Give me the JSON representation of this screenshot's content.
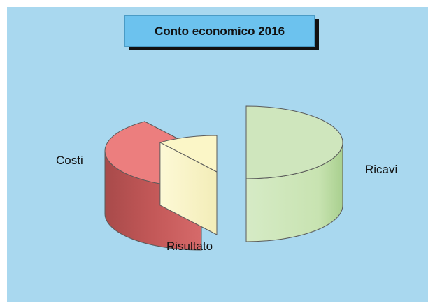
{
  "chart_data": {
    "type": "pie",
    "title": "Conto economico 2016",
    "categories": [
      "Ricavi",
      "Costi",
      "Risultato"
    ],
    "values": [
      50,
      40,
      10
    ],
    "colors": [
      "#cfe6bd",
      "#ec7e7e",
      "#fbf6c7"
    ],
    "style": "3d-exploded"
  }
}
